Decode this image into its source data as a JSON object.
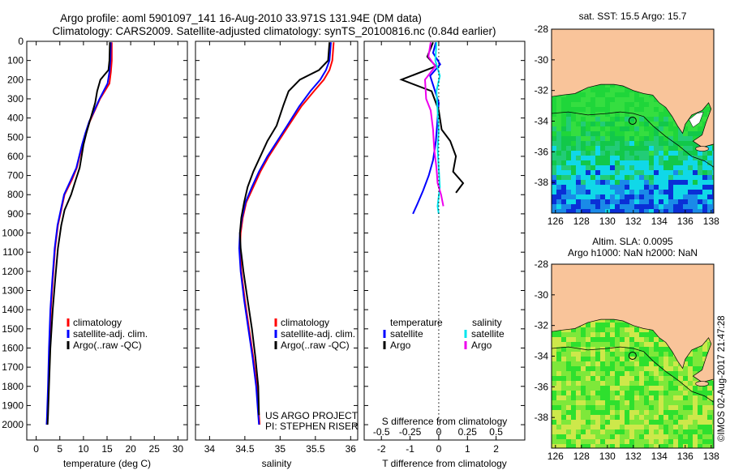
{
  "header": {
    "line1": "Argo profile: aoml 5901097_141 16-Aug-2010 33.971S 131.94E (DM data)",
    "line2": "Climatology: CARS2009. Satellite-adjusted climatology: synTS_20100816.nc (0.84d earlier)"
  },
  "footer": {
    "project": "US ARGO PROJECT",
    "pi": "PI: STEPHEN RISER",
    "stamp": "©IMOS 02-Aug-2017 21:47:28"
  },
  "colors": {
    "climatology": "#ff0000",
    "satellite": "#0000ff",
    "argo": "#000000",
    "salinity_satellite": "#00e5ee",
    "salinity_argo": "#ee00ee",
    "land": "#f9c49a"
  },
  "chart_data": [
    {
      "id": "temperature",
      "type": "line",
      "xlabel": "temperature (deg C)",
      "ylabel": "",
      "xlim": [
        -2,
        32
      ],
      "ylim": [
        0,
        2080
      ],
      "x_ticks": [
        "0",
        "5",
        "10",
        "15",
        "20",
        "25",
        "30"
      ],
      "x_tick_values": [
        0,
        5,
        10,
        15,
        20,
        25,
        30
      ],
      "y_ticks": [
        "0",
        "100",
        "200",
        "300",
        "400",
        "500",
        "600",
        "700",
        "800",
        "900",
        "1000",
        "1100",
        "1200",
        "1300",
        "1400",
        "1500",
        "1600",
        "1700",
        "1800",
        "1900",
        "2000"
      ],
      "y_tick_values": [
        0,
        100,
        200,
        300,
        400,
        500,
        600,
        700,
        800,
        900,
        1000,
        1100,
        1200,
        1300,
        1400,
        1500,
        1600,
        1700,
        1800,
        1900,
        2000
      ],
      "legend": [
        "climatology",
        "satellite-adj. clim.",
        "Argo(..raw -QC)"
      ],
      "series": [
        {
          "name": "climatology",
          "x": [
            16.0,
            16.0,
            15.8,
            15.5,
            13.5,
            12.4,
            11.3,
            10.5,
            9.8,
            9.2,
            8.6,
            7.6,
            6.0,
            5.3,
            4.6,
            4.0,
            3.5,
            3.1,
            2.8,
            2.6,
            2.4,
            2.3
          ],
          "y": [
            5,
            100,
            160,
            220,
            300,
            360,
            420,
            480,
            540,
            600,
            660,
            720,
            800,
            880,
            960,
            1080,
            1250,
            1400,
            1600,
            1800,
            1950,
            2000
          ]
        },
        {
          "name": "satellite-adj. clim.",
          "x": [
            15.8,
            15.7,
            15.5,
            15.1,
            13.4,
            12.3,
            11.2,
            10.4,
            9.7,
            9.1,
            8.5,
            7.4,
            5.9,
            5.2,
            4.5,
            3.9,
            3.4,
            3.0,
            2.7,
            2.5,
            2.3,
            2.2
          ],
          "y": [
            5,
            100,
            160,
            220,
            300,
            360,
            420,
            480,
            540,
            600,
            660,
            720,
            800,
            880,
            960,
            1080,
            1250,
            1400,
            1600,
            1800,
            1950,
            2000
          ]
        },
        {
          "name": "Argo(..raw -QC)",
          "x": [
            15.6,
            15.5,
            15.3,
            13.6,
            12.9,
            12.5,
            11.3,
            10.6,
            10.0,
            9.6,
            9.2,
            8.4,
            7.4,
            6.0,
            5.3,
            4.6,
            4.0,
            3.5,
            3.0,
            2.7,
            2.5,
            2.4
          ],
          "y": [
            5,
            100,
            150,
            200,
            260,
            320,
            420,
            480,
            540,
            600,
            660,
            720,
            800,
            880,
            960,
            1080,
            1250,
            1400,
            1600,
            1800,
            1950,
            2000
          ]
        }
      ]
    },
    {
      "id": "salinity",
      "type": "line",
      "xlabel": "salinity",
      "xlim": [
        33.8,
        36.1
      ],
      "ylim": [
        0,
        2080
      ],
      "x_ticks": [
        "34",
        "34.5",
        "35",
        "35.5",
        "36"
      ],
      "x_tick_values": [
        34,
        34.5,
        35,
        35.5,
        36
      ],
      "legend": [
        "climatology",
        "satellite-adj. clim.",
        "Argo(..raw -QC)"
      ],
      "series": [
        {
          "name": "climatology",
          "x": [
            35.76,
            35.74,
            35.7,
            35.62,
            35.48,
            35.3,
            35.12,
            34.98,
            34.84,
            34.72,
            34.62,
            34.52,
            34.47,
            34.44,
            34.43,
            34.45,
            34.5,
            34.56,
            34.62,
            34.67,
            34.7,
            34.71
          ],
          "y": [
            5,
            100,
            150,
            200,
            260,
            340,
            440,
            520,
            600,
            680,
            760,
            840,
            920,
            1000,
            1080,
            1200,
            1350,
            1500,
            1650,
            1800,
            1950,
            2000
          ]
        },
        {
          "name": "satellite-adj. clim.",
          "x": [
            35.72,
            35.7,
            35.65,
            35.57,
            35.43,
            35.27,
            35.1,
            34.96,
            34.82,
            34.7,
            34.6,
            34.51,
            34.46,
            34.43,
            34.42,
            34.44,
            34.49,
            34.55,
            34.61,
            34.66,
            34.69,
            34.7
          ],
          "y": [
            5,
            100,
            150,
            200,
            260,
            340,
            440,
            520,
            600,
            680,
            760,
            840,
            920,
            1000,
            1080,
            1200,
            1350,
            1500,
            1650,
            1800,
            1950,
            2000
          ]
        },
        {
          "name": "Argo(..raw -QC)",
          "x": [
            35.7,
            35.68,
            35.55,
            35.28,
            35.12,
            35.05,
            34.95,
            34.82,
            34.72,
            34.62,
            34.54,
            34.49,
            34.45,
            34.43,
            34.44,
            34.48,
            34.54,
            34.6,
            34.65,
            34.69,
            34.7
          ],
          "y": [
            5,
            100,
            150,
            200,
            260,
            330,
            440,
            520,
            600,
            680,
            760,
            840,
            920,
            1000,
            1080,
            1200,
            1350,
            1500,
            1650,
            1800,
            1950
          ]
        }
      ]
    },
    {
      "id": "differences",
      "type": "line",
      "xlabel": "T difference from climatology",
      "top_xlabel": "S difference from climatology",
      "xlim": [
        -2.6,
        3.0
      ],
      "ylim": [
        0,
        2080
      ],
      "x_ticks": [
        "-2",
        "-1",
        "0",
        "1",
        "2"
      ],
      "x_tick_values": [
        -2,
        -1,
        0,
        1,
        2
      ],
      "top_ticks": [
        "-0.5",
        "-0.25",
        "0",
        "0.25",
        "0.5"
      ],
      "top_tick_values": [
        -0.5,
        -0.25,
        0,
        0.25,
        0.5
      ],
      "legend_titles": [
        "temperature",
        "salinity"
      ],
      "legend": [
        "satellite",
        "Argo",
        "satellite",
        "Argo"
      ],
      "series": [
        {
          "name": "satellite",
          "quantity": "temperature",
          "x": [
            -0.1,
            -0.2,
            0.05,
            -0.3,
            -0.15,
            0.0,
            -0.05,
            -0.1,
            -0.2,
            -0.35,
            -0.55,
            -0.75,
            -0.9
          ],
          "y": [
            5,
            60,
            120,
            180,
            250,
            320,
            420,
            520,
            620,
            700,
            780,
            850,
            900
          ]
        },
        {
          "name": "Argo",
          "quantity": "temperature",
          "x": [
            -0.2,
            -0.4,
            -0.1,
            -1.3,
            -0.25,
            0.0,
            0.1,
            0.4,
            0.6,
            0.5,
            0.85,
            0.6
          ],
          "y": [
            5,
            80,
            130,
            200,
            260,
            360,
            460,
            520,
            600,
            680,
            740,
            790
          ]
        },
        {
          "name": "satellite",
          "quantity": "salinity",
          "x": [
            -0.02,
            -0.03,
            0.01,
            -0.02,
            -0.01,
            0.0,
            -0.01,
            0.0,
            0.01,
            -0.01,
            0.0
          ],
          "y": [
            5,
            100,
            180,
            260,
            360,
            460,
            560,
            660,
            760,
            860,
            900
          ]
        },
        {
          "name": "Argo",
          "quantity": "salinity",
          "x": [
            -0.07,
            -0.09,
            -0.03,
            -0.12,
            -0.11,
            -0.07,
            -0.05,
            -0.04,
            -0.02,
            -0.01,
            0.02,
            0.04
          ],
          "y": [
            5,
            80,
            130,
            200,
            300,
            360,
            460,
            560,
            660,
            740,
            800,
            860
          ]
        }
      ]
    },
    {
      "id": "sst-map",
      "type": "heatmap",
      "title": "sat. SST: 15.5 Argo: 15.7",
      "xlim": [
        125.7,
        138.2
      ],
      "ylim": [
        -40,
        -28
      ],
      "x_ticks": [
        "126",
        "128",
        "130",
        "132",
        "134",
        "136",
        "138"
      ],
      "x_tick_values": [
        126,
        128,
        130,
        132,
        134,
        136,
        138
      ],
      "y_ticks": [
        "-28",
        "-30",
        "-32",
        "-34",
        "-36",
        "-38"
      ],
      "y_tick_values": [
        -28,
        -30,
        -32,
        -34,
        -36,
        -38
      ],
      "marker": {
        "lon": 131.94,
        "lat": -33.971
      }
    },
    {
      "id": "sla-map",
      "type": "heatmap",
      "title_line1": "Altim. SLA: 0.0095",
      "title_line2": "Argo h1000: NaN h2000: NaN",
      "xlim": [
        125.7,
        138.2
      ],
      "ylim": [
        -40,
        -28
      ],
      "x_ticks": [
        "126",
        "128",
        "130",
        "132",
        "134",
        "136",
        "138"
      ],
      "x_tick_values": [
        126,
        128,
        130,
        132,
        134,
        136,
        138
      ],
      "y_ticks": [
        "-28",
        "-30",
        "-32",
        "-34",
        "-36",
        "-38"
      ],
      "y_tick_values": [
        -28,
        -30,
        -32,
        -34,
        -36,
        -38
      ],
      "marker": {
        "lon": 131.94,
        "lat": -33.971
      }
    }
  ]
}
